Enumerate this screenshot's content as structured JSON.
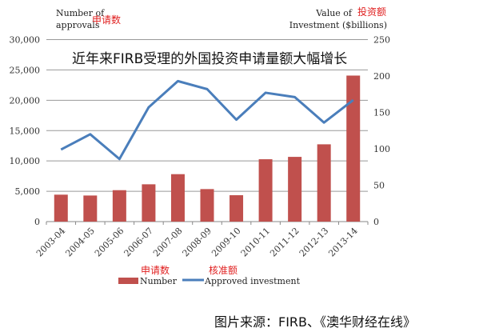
{
  "chart_data": {
    "type": "bar",
    "title": "近年来FIRB受理的外国投资申请量额大幅增长",
    "categories": [
      "2003-04",
      "2004-05",
      "2005-06",
      "2006-07",
      "2007-08",
      "2008-09",
      "2009-10",
      "2010-11",
      "2011-12",
      "2012-13",
      "2013-14"
    ],
    "series": [
      {
        "name": "Number",
        "name_cn": "申请数",
        "type": "bar",
        "axis": "left",
        "color": "#c0504d",
        "values": [
          4440,
          4300,
          5180,
          6150,
          7820,
          5360,
          4350,
          10280,
          10670,
          12740,
          24070
        ]
      },
      {
        "name": "Approved investment",
        "name_cn": "核准额",
        "type": "line",
        "axis": "right",
        "color": "#4a7ebb",
        "values": [
          99,
          120,
          86,
          157,
          193,
          182,
          140,
          177,
          171,
          136,
          167
        ]
      }
    ],
    "left_axis": {
      "label_line1": "Number of",
      "label_line2": "approvals",
      "label_cn": "申请数",
      "ylim": [
        0,
        30000
      ],
      "ticks": [
        "0",
        "5,000",
        "10,000",
        "15,000",
        "20,000",
        "25,000",
        "30,000"
      ],
      "tick_values": [
        0,
        5000,
        10000,
        15000,
        20000,
        25000,
        30000
      ]
    },
    "right_axis": {
      "label_line1": "Value of",
      "label_line2": "Investment ($billions)",
      "label_cn": "投资额",
      "ylim": [
        0,
        250
      ],
      "ticks": [
        "0",
        "50",
        "100",
        "150",
        "200",
        "250"
      ],
      "tick_values": [
        0,
        50,
        100,
        150,
        200,
        250
      ]
    },
    "grid": true,
    "legend_placement": "bottom"
  },
  "source": "图片来源：FIRB、《澳华财经在线》"
}
